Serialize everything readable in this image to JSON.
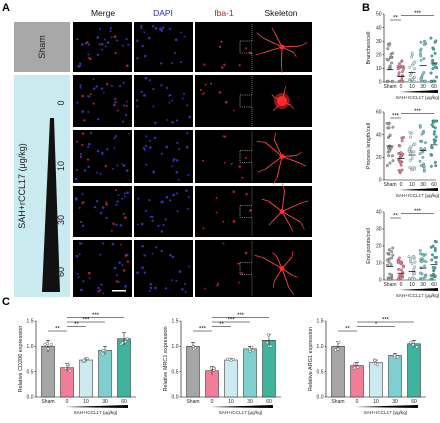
{
  "panelA": {
    "letter": "A",
    "columns": [
      "Merge",
      "DAPI",
      "Iba-1",
      "Skeleton"
    ],
    "column_colors": [
      "#111111",
      "#2a2ab8",
      "#b8202a",
      "#111111"
    ],
    "rows": [
      "Sham",
      "0",
      "10",
      "30",
      "60"
    ],
    "group_label": "SAH+rCCL17 (μg/kg)",
    "sham_label": "Sham"
  },
  "panelB": {
    "letter": "B",
    "xlabel": "SAH+rCCL17 (μg/kg)",
    "categories": [
      "Sham",
      "0",
      "10",
      "30",
      "60"
    ]
  },
  "panelC": {
    "letter": "C",
    "xlabel": "SAH+rCCL17 (μg/kg)",
    "categories": [
      "Sham",
      "0",
      "10",
      "30",
      "60"
    ]
  },
  "colors": {
    "sham": "#a6a6a6",
    "d0": "#f07e96",
    "d10": "#cdeaf0",
    "d30": "#7fcfd0",
    "d60": "#3fb39b"
  },
  "chart_data": [
    {
      "id": "branches",
      "type": "scatter",
      "ylabel": "Branches/cell",
      "ylim": [
        0,
        50
      ],
      "yticks": [
        0,
        10,
        20,
        30,
        40,
        50
      ],
      "categories": [
        "Sham",
        "0",
        "10",
        "30",
        "60"
      ],
      "means": [
        9,
        4,
        7,
        12,
        14
      ],
      "spread": [
        40,
        24,
        30,
        37,
        44
      ],
      "significance": [
        {
          "from": 0,
          "to": 1,
          "label": "**"
        },
        {
          "from": 1,
          "to": 4,
          "label": "***"
        }
      ]
    },
    {
      "id": "process",
      "type": "scatter",
      "ylabel": "Process length/cell",
      "ylim": [
        0,
        60
      ],
      "yticks": [
        0,
        20,
        40,
        60
      ],
      "categories": [
        "Sham",
        "0",
        "10",
        "30",
        "60"
      ],
      "means": [
        30,
        19,
        22,
        26,
        31
      ],
      "spread": [
        50,
        38,
        42,
        48,
        52
      ],
      "significance": [
        {
          "from": 0,
          "to": 1,
          "label": "***"
        },
        {
          "from": 1,
          "to": 4,
          "label": "***"
        }
      ]
    },
    {
      "id": "endpoints",
      "type": "scatter",
      "ylabel": "End points/cell",
      "ylim": [
        0,
        40
      ],
      "yticks": [
        0,
        10,
        20,
        30,
        40
      ],
      "categories": [
        "Sham",
        "0",
        "10",
        "30",
        "60"
      ],
      "means": [
        8,
        4,
        5,
        7,
        9
      ],
      "spread": [
        26,
        18,
        20,
        24,
        30
      ],
      "significance": [
        {
          "from": 0,
          "to": 1,
          "label": "**"
        },
        {
          "from": 1,
          "to": 4,
          "label": "***"
        }
      ]
    },
    {
      "id": "cd206",
      "type": "bar",
      "ylabel": "Relative CD206 expression",
      "ylim": [
        0,
        1.5
      ],
      "yticks": [
        0.0,
        0.5,
        1.0,
        1.5
      ],
      "categories": [
        "Sham",
        "0",
        "10",
        "30",
        "60"
      ],
      "values": [
        1.0,
        0.58,
        0.73,
        0.92,
        1.15
      ],
      "errors": [
        0.12,
        0.08,
        0.04,
        0.08,
        0.12
      ],
      "significance": [
        {
          "from": 0,
          "to": 1,
          "label": "**"
        },
        {
          "from": 1,
          "to": 2,
          "label": "**"
        },
        {
          "from": 1,
          "to": 3,
          "label": "***"
        },
        {
          "from": 1,
          "to": 4,
          "label": "***"
        }
      ]
    },
    {
      "id": "mrc1",
      "type": "bar",
      "ylabel": "Relative MRC1 expression",
      "ylim": [
        0,
        1.5
      ],
      "yticks": [
        0.0,
        0.5,
        1.0,
        1.5
      ],
      "categories": [
        "Sham",
        "0",
        "10",
        "30",
        "60"
      ],
      "values": [
        1.0,
        0.52,
        0.73,
        0.95,
        1.12
      ],
      "errors": [
        0.08,
        0.08,
        0.03,
        0.05,
        0.12
      ],
      "significance": [
        {
          "from": 0,
          "to": 1,
          "label": "***"
        },
        {
          "from": 1,
          "to": 2,
          "label": "**"
        },
        {
          "from": 1,
          "to": 3,
          "label": "***"
        },
        {
          "from": 1,
          "to": 4,
          "label": "***"
        }
      ]
    },
    {
      "id": "arg1",
      "type": "bar",
      "ylabel": "Relative ARG1 expression",
      "ylim": [
        0,
        1.5
      ],
      "yticks": [
        0.0,
        0.5,
        1.0,
        1.5
      ],
      "categories": [
        "Sham",
        "0",
        "10",
        "30",
        "60"
      ],
      "values": [
        1.0,
        0.62,
        0.68,
        0.82,
        1.05
      ],
      "errors": [
        0.09,
        0.06,
        0.05,
        0.04,
        0.07
      ],
      "significance": [
        {
          "from": 0,
          "to": 1,
          "label": "**"
        },
        {
          "from": 1,
          "to": 3,
          "label": "*"
        },
        {
          "from": 1,
          "to": 4,
          "label": "***"
        }
      ]
    }
  ]
}
